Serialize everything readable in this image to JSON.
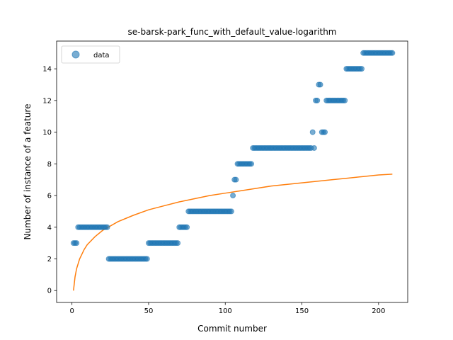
{
  "chart_data": {
    "type": "scatter",
    "title": "se-barsk-park_func_with_default_value-logarithm",
    "xlabel": "Commit number",
    "ylabel": "Number of instance of a feature",
    "xlim": [
      -10,
      219
    ],
    "ylim": [
      -0.75,
      15.75
    ],
    "x_ticks": [
      0,
      50,
      100,
      150,
      200
    ],
    "y_ticks": [
      0,
      2,
      4,
      6,
      8,
      10,
      12,
      14
    ],
    "grid": false,
    "legend": {
      "placement": "top-left",
      "entries": [
        {
          "label": "data",
          "marker": "circle"
        }
      ]
    },
    "series": [
      {
        "name": "data",
        "kind": "scatter",
        "color": "#1f77b4",
        "points": [
          [
            1,
            3
          ],
          [
            2,
            3
          ],
          [
            3,
            3
          ],
          [
            4,
            4
          ],
          [
            5,
            4
          ],
          [
            6,
            4
          ],
          [
            7,
            4
          ],
          [
            8,
            4
          ],
          [
            9,
            4
          ],
          [
            10,
            4
          ],
          [
            11,
            4
          ],
          [
            12,
            4
          ],
          [
            13,
            4
          ],
          [
            14,
            4
          ],
          [
            15,
            4
          ],
          [
            16,
            4
          ],
          [
            17,
            4
          ],
          [
            18,
            4
          ],
          [
            19,
            4
          ],
          [
            20,
            4
          ],
          [
            21,
            4
          ],
          [
            22,
            4
          ],
          [
            23,
            4
          ],
          [
            24,
            2
          ],
          [
            25,
            2
          ],
          [
            26,
            2
          ],
          [
            27,
            2
          ],
          [
            28,
            2
          ],
          [
            29,
            2
          ],
          [
            30,
            2
          ],
          [
            31,
            2
          ],
          [
            32,
            2
          ],
          [
            33,
            2
          ],
          [
            34,
            2
          ],
          [
            35,
            2
          ],
          [
            36,
            2
          ],
          [
            37,
            2
          ],
          [
            38,
            2
          ],
          [
            39,
            2
          ],
          [
            40,
            2
          ],
          [
            41,
            2
          ],
          [
            42,
            2
          ],
          [
            43,
            2
          ],
          [
            44,
            2
          ],
          [
            45,
            2
          ],
          [
            46,
            2
          ],
          [
            47,
            2
          ],
          [
            48,
            2
          ],
          [
            49,
            2
          ],
          [
            50,
            3
          ],
          [
            51,
            3
          ],
          [
            52,
            3
          ],
          [
            53,
            3
          ],
          [
            54,
            3
          ],
          [
            55,
            3
          ],
          [
            56,
            3
          ],
          [
            57,
            3
          ],
          [
            58,
            3
          ],
          [
            59,
            3
          ],
          [
            60,
            3
          ],
          [
            61,
            3
          ],
          [
            62,
            3
          ],
          [
            63,
            3
          ],
          [
            64,
            3
          ],
          [
            65,
            3
          ],
          [
            66,
            3
          ],
          [
            67,
            3
          ],
          [
            68,
            3
          ],
          [
            69,
            3
          ],
          [
            70,
            4
          ],
          [
            71,
            4
          ],
          [
            72,
            4
          ],
          [
            73,
            4
          ],
          [
            74,
            4
          ],
          [
            75,
            4
          ],
          [
            76,
            5
          ],
          [
            77,
            5
          ],
          [
            78,
            5
          ],
          [
            79,
            5
          ],
          [
            80,
            5
          ],
          [
            81,
            5
          ],
          [
            82,
            5
          ],
          [
            83,
            5
          ],
          [
            84,
            5
          ],
          [
            85,
            5
          ],
          [
            86,
            5
          ],
          [
            87,
            5
          ],
          [
            88,
            5
          ],
          [
            89,
            5
          ],
          [
            90,
            5
          ],
          [
            91,
            5
          ],
          [
            92,
            5
          ],
          [
            93,
            5
          ],
          [
            94,
            5
          ],
          [
            95,
            5
          ],
          [
            96,
            5
          ],
          [
            97,
            5
          ],
          [
            98,
            5
          ],
          [
            99,
            5
          ],
          [
            100,
            5
          ],
          [
            101,
            5
          ],
          [
            102,
            5
          ],
          [
            103,
            5
          ],
          [
            104,
            5
          ],
          [
            105,
            6
          ],
          [
            106,
            7
          ],
          [
            107,
            7
          ],
          [
            108,
            8
          ],
          [
            109,
            8
          ],
          [
            110,
            8
          ],
          [
            111,
            8
          ],
          [
            112,
            8
          ],
          [
            113,
            8
          ],
          [
            114,
            8
          ],
          [
            115,
            8
          ],
          [
            116,
            8
          ],
          [
            117,
            8
          ],
          [
            118,
            9
          ],
          [
            119,
            9
          ],
          [
            120,
            9
          ],
          [
            121,
            9
          ],
          [
            122,
            9
          ],
          [
            123,
            9
          ],
          [
            124,
            9
          ],
          [
            125,
            9
          ],
          [
            126,
            9
          ],
          [
            127,
            9
          ],
          [
            128,
            9
          ],
          [
            129,
            9
          ],
          [
            130,
            9
          ],
          [
            131,
            9
          ],
          [
            132,
            9
          ],
          [
            133,
            9
          ],
          [
            134,
            9
          ],
          [
            135,
            9
          ],
          [
            136,
            9
          ],
          [
            137,
            9
          ],
          [
            138,
            9
          ],
          [
            139,
            9
          ],
          [
            140,
            9
          ],
          [
            141,
            9
          ],
          [
            142,
            9
          ],
          [
            143,
            9
          ],
          [
            144,
            9
          ],
          [
            145,
            9
          ],
          [
            146,
            9
          ],
          [
            147,
            9
          ],
          [
            148,
            9
          ],
          [
            149,
            9
          ],
          [
            150,
            9
          ],
          [
            151,
            9
          ],
          [
            152,
            9
          ],
          [
            153,
            9
          ],
          [
            154,
            9
          ],
          [
            155,
            9
          ],
          [
            156,
            9
          ],
          [
            157,
            10
          ],
          [
            158,
            9
          ],
          [
            159,
            12
          ],
          [
            160,
            12
          ],
          [
            161,
            13
          ],
          [
            162,
            13
          ],
          [
            163,
            10
          ],
          [
            164,
            10
          ],
          [
            165,
            10
          ],
          [
            166,
            12
          ],
          [
            167,
            12
          ],
          [
            168,
            12
          ],
          [
            169,
            12
          ],
          [
            170,
            12
          ],
          [
            171,
            12
          ],
          [
            172,
            12
          ],
          [
            173,
            12
          ],
          [
            174,
            12
          ],
          [
            175,
            12
          ],
          [
            176,
            12
          ],
          [
            177,
            12
          ],
          [
            178,
            12
          ],
          [
            179,
            14
          ],
          [
            180,
            14
          ],
          [
            181,
            14
          ],
          [
            182,
            14
          ],
          [
            183,
            14
          ],
          [
            184,
            14
          ],
          [
            185,
            14
          ],
          [
            186,
            14
          ],
          [
            187,
            14
          ],
          [
            188,
            14
          ],
          [
            189,
            14
          ],
          [
            190,
            15
          ],
          [
            191,
            15
          ],
          [
            192,
            15
          ],
          [
            193,
            15
          ],
          [
            194,
            15
          ],
          [
            195,
            15
          ],
          [
            196,
            15
          ],
          [
            197,
            15
          ],
          [
            198,
            15
          ],
          [
            199,
            15
          ],
          [
            200,
            15
          ],
          [
            201,
            15
          ],
          [
            202,
            15
          ],
          [
            203,
            15
          ],
          [
            204,
            15
          ],
          [
            205,
            15
          ],
          [
            206,
            15
          ],
          [
            207,
            15
          ],
          [
            208,
            15
          ],
          [
            209,
            15
          ]
        ]
      },
      {
        "kind": "line",
        "color": "#ff7f0e",
        "points": [
          [
            1,
            0
          ],
          [
            2,
            0.86
          ],
          [
            3,
            1.37
          ],
          [
            5,
            2.0
          ],
          [
            8,
            2.6
          ],
          [
            10,
            2.9
          ],
          [
            15,
            3.4
          ],
          [
            20,
            3.8
          ],
          [
            30,
            4.35
          ],
          [
            40,
            4.75
          ],
          [
            50,
            5.1
          ],
          [
            60,
            5.35
          ],
          [
            70,
            5.6
          ],
          [
            80,
            5.8
          ],
          [
            90,
            6.0
          ],
          [
            100,
            6.15
          ],
          [
            110,
            6.3
          ],
          [
            120,
            6.45
          ],
          [
            130,
            6.6
          ],
          [
            140,
            6.7
          ],
          [
            150,
            6.8
          ],
          [
            160,
            6.9
          ],
          [
            170,
            7.0
          ],
          [
            180,
            7.1
          ],
          [
            190,
            7.2
          ],
          [
            200,
            7.3
          ],
          [
            209,
            7.35
          ]
        ]
      }
    ]
  }
}
